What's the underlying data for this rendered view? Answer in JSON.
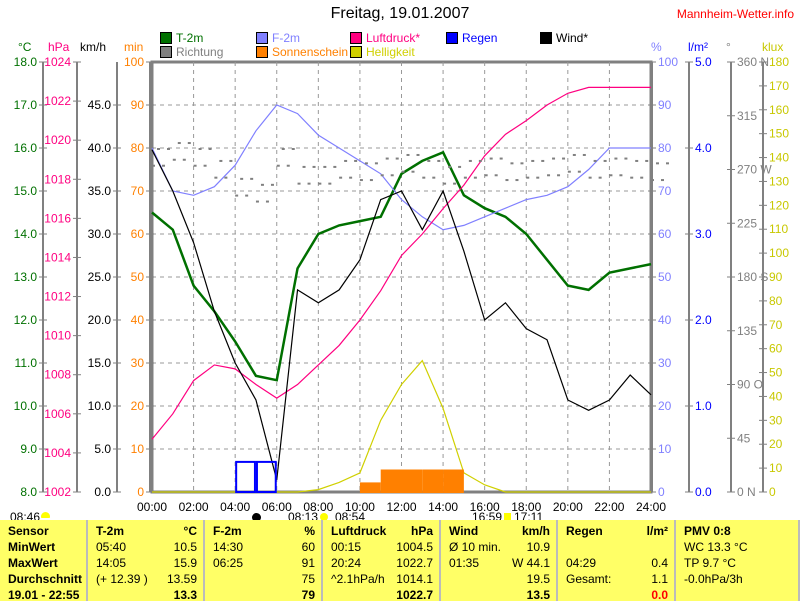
{
  "title": "Freitag, 19.01.2007",
  "brand": "Mannheim-Wetter.info",
  "legend": [
    {
      "label": "T-2m",
      "color": "#007000"
    },
    {
      "label": "Richtung",
      "color": "#808080"
    },
    {
      "label": "F-2m",
      "color": "#8080ff"
    },
    {
      "label": "Sonnenschein",
      "color": "#ff8000"
    },
    {
      "label": "Luftdruck*",
      "color": "#ff0080"
    },
    {
      "label": "Helligkeit",
      "color": "#d0d000"
    },
    {
      "label": "Regen",
      "color": "#0000ff"
    },
    {
      "label": "Wind*",
      "color": "#000000"
    }
  ],
  "units": {
    "c": "°C",
    "hpa": "hPa",
    "kmh": "km/h",
    "min": "min",
    "pct": "%",
    "lm2": "l/m²",
    "deg": "°",
    "klux": "klux"
  },
  "astro": {
    "moonrise_left": "08:46",
    "sunrise": "08:13",
    "moonset": "08:54",
    "sunset": "16:59",
    "moon2": "17:11"
  },
  "chart_data": {
    "type": "line",
    "title": "Freitag, 19.01.2007",
    "grid": true,
    "x_ticks": [
      "00:00",
      "02:00",
      "04:00",
      "06:00",
      "08:00",
      "10:00",
      "12:00",
      "14:00",
      "16:00",
      "18:00",
      "20:00",
      "22:00",
      "24:00"
    ],
    "axes": {
      "c": {
        "range": [
          8,
          18
        ],
        "labels": [
          "18.0",
          "17.0",
          "16.0",
          "15.0",
          "14.0",
          "13.0",
          "12.0",
          "11.0",
          "10.0",
          "9.0",
          "8.0"
        ],
        "color": "#007000"
      },
      "hpa": {
        "range": [
          1002,
          1024
        ],
        "labels": [
          "1024",
          "1022",
          "1020",
          "1018",
          "1016",
          "1014",
          "1012",
          "1010",
          "1008",
          "1006",
          "1004",
          "1002"
        ],
        "color": "#ff0080"
      },
      "kmh": {
        "range": [
          0,
          50
        ],
        "labels": [
          "45.0",
          "40.0",
          "35.0",
          "30.0",
          "25.0",
          "20.0",
          "15.0",
          "10.0",
          "5.0",
          "0.0"
        ],
        "color": "#000000"
      },
      "min": {
        "range": [
          0,
          100
        ],
        "labels": [
          "100",
          "90",
          "80",
          "70",
          "60",
          "50",
          "40",
          "30",
          "20",
          "10",
          "0"
        ],
        "color": "#ff8000"
      },
      "pct": {
        "range": [
          0,
          100
        ],
        "labels": [
          "100",
          "90",
          "80",
          "70",
          "60",
          "50",
          "40",
          "30",
          "20",
          "10",
          "0"
        ],
        "color": "#8080ff"
      },
      "lm2": {
        "range": [
          0,
          5
        ],
        "labels": [
          "5.0",
          "4.0",
          "3.0",
          "2.0",
          "1.0",
          "0.0"
        ],
        "color": "#0000ff"
      },
      "deg": {
        "range": [
          0,
          360
        ],
        "labels": [
          "360 N",
          "315",
          "270 W",
          "225",
          "180 S",
          "135",
          "90 O",
          "45",
          "0 N"
        ],
        "color": "#808080"
      },
      "klux": {
        "range": [
          0,
          180
        ],
        "labels": [
          "180",
          "170",
          "160",
          "150",
          "140",
          "130",
          "120",
          "110",
          "100",
          "90",
          "80",
          "70",
          "60",
          "50",
          "40",
          "30",
          "20",
          "10",
          "0"
        ],
        "color": "#c8c800"
      }
    },
    "hours": [
      0,
      1,
      2,
      3,
      4,
      5,
      6,
      7,
      8,
      9,
      10,
      11,
      12,
      13,
      14,
      15,
      16,
      17,
      18,
      19,
      20,
      21,
      22,
      23,
      24
    ],
    "series": [
      {
        "name": "T-2m",
        "axis": "c",
        "color": "#007000",
        "values": [
          14.5,
          14.1,
          12.8,
          12.2,
          11.5,
          10.7,
          10.6,
          13.2,
          14.0,
          14.2,
          14.3,
          14.4,
          15.4,
          15.7,
          15.9,
          14.9,
          14.6,
          14.4,
          14.0,
          13.4,
          12.8,
          12.7,
          13.1,
          13.2,
          13.3
        ]
      },
      {
        "name": "F-2m",
        "axis": "pct",
        "color": "#8080ff",
        "values": [
          80,
          70,
          69,
          71,
          76,
          84,
          90,
          88,
          83,
          80,
          77,
          74,
          68,
          64,
          61,
          62,
          64,
          66,
          68,
          69,
          71,
          75,
          80,
          80,
          80
        ]
      },
      {
        "name": "Luftdruck*",
        "axis": "hpa",
        "color": "#ff0080",
        "values": [
          1004.7,
          1006,
          1007.7,
          1008.5,
          1008.3,
          1007.5,
          1006.8,
          1007.5,
          1008.5,
          1009.5,
          1010.8,
          1012.3,
          1014.1,
          1015.2,
          1016.5,
          1017.7,
          1019.2,
          1020.3,
          1021,
          1021.8,
          1022.4,
          1022.7,
          1022.7,
          1022.7,
          1022.7
        ]
      },
      {
        "name": "Wind*",
        "axis": "kmh",
        "color": "#000000",
        "values": [
          39.8,
          35,
          29,
          21,
          15,
          10.7,
          1.4,
          23.5,
          22,
          23.5,
          27,
          34,
          35,
          30.5,
          35,
          28,
          20,
          22,
          19,
          17.7,
          10.7,
          9.5,
          10.7,
          13.6,
          11.3
        ]
      },
      {
        "name": "Richtung",
        "axis": "deg",
        "color": "#808080",
        "values": [
          280,
          285,
          280,
          270,
          255,
          250,
          280,
          265,
          265,
          270,
          268,
          272,
          275,
          270,
          265,
          270,
          272,
          268,
          270,
          272,
          275,
          270,
          272,
          270,
          268
        ]
      },
      {
        "name": "Helligkeit",
        "axis": "klux",
        "color": "#d0d000",
        "values": [
          0,
          0,
          0,
          0,
          0,
          0,
          0,
          0,
          1,
          4,
          8,
          30,
          45,
          55,
          35,
          8,
          3,
          0,
          0,
          0,
          0,
          0,
          0,
          0,
          0
        ]
      },
      {
        "name": "Sonnenschein",
        "axis": "min",
        "color": "#ff8000",
        "type": "bar",
        "values": [
          0,
          0,
          0,
          0,
          0,
          0,
          0,
          0,
          0,
          0,
          2,
          5,
          5,
          5,
          5,
          0,
          0,
          0,
          0,
          0,
          0,
          0,
          0,
          0,
          0
        ]
      },
      {
        "name": "Regen",
        "axis": "lm2",
        "color": "#0000ff",
        "type": "bar",
        "values": [
          0,
          0,
          0,
          0,
          0.35,
          0.35,
          0,
          0,
          0,
          0,
          0,
          0,
          0,
          0,
          0,
          0,
          0,
          0,
          0,
          0,
          0,
          0,
          0,
          0,
          0
        ]
      }
    ]
  },
  "table": {
    "rows": [
      [
        "Sensor",
        "T-2m",
        "°C",
        "F-2m",
        "%",
        "Luftdruck",
        "hPa",
        "Wind",
        "km/h",
        "Regen",
        "l/m²",
        "PMV 0:8"
      ],
      [
        "MinWert",
        "05:40",
        "10.5",
        "14:30",
        "60",
        "00:15",
        "1004.5",
        "Ø 10 min.",
        "10.9",
        "",
        "",
        "WC 13.3 °C"
      ],
      [
        "MaxWert",
        "14:05",
        "15.9",
        "06:25",
        "91",
        "20:24",
        "1022.7",
        "01:35",
        "W 44.1",
        "04:29",
        "0.4",
        "TP 9.7 °C"
      ],
      [
        "Durchschnitt",
        "(+ 12.39 )",
        "13.59",
        "",
        "75",
        "^2.1hPa/h",
        "1014.1",
        "",
        "19.5",
        "Gesamt:",
        "1.1",
        "-0.0hPa/3h"
      ],
      [
        "19.01 - 22:55",
        "",
        "13.3",
        "",
        "79",
        "",
        "1022.7",
        "",
        "13.5",
        "",
        "0.0",
        ""
      ]
    ]
  }
}
